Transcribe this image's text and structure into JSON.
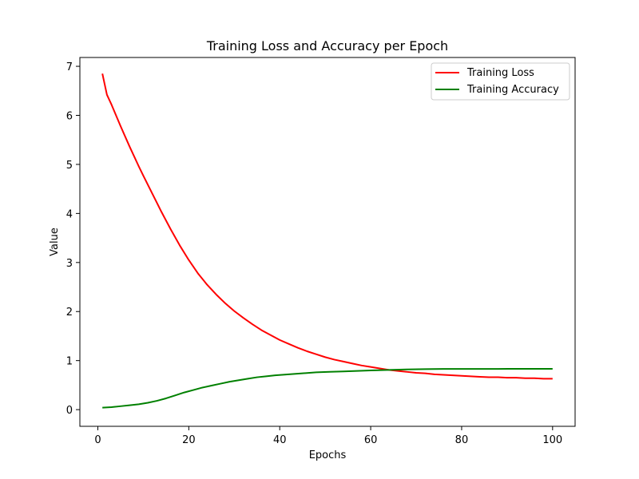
{
  "chart_data": {
    "type": "line",
    "title": "Training Loss and Accuracy per Epoch",
    "xlabel": "Epochs",
    "ylabel": "Value",
    "xlim": [
      -3.95,
      104.95
    ],
    "ylim": [
      -0.34,
      7.18
    ],
    "xticks": [
      0,
      20,
      40,
      60,
      80,
      100
    ],
    "yticks": [
      0,
      1,
      2,
      3,
      4,
      5,
      6,
      7
    ],
    "grid": false,
    "legend_position": "top-right",
    "series": [
      {
        "name": "Training Loss",
        "color": "#ff0000",
        "points": [
          [
            1,
            6.85
          ],
          [
            2,
            6.42
          ],
          [
            3,
            6.22
          ],
          [
            4,
            6.0
          ],
          [
            5,
            5.78
          ],
          [
            6,
            5.57
          ],
          [
            7,
            5.36
          ],
          [
            8,
            5.16
          ],
          [
            9,
            4.96
          ],
          [
            10,
            4.77
          ],
          [
            12,
            4.4
          ],
          [
            14,
            4.03
          ],
          [
            16,
            3.68
          ],
          [
            18,
            3.35
          ],
          [
            20,
            3.05
          ],
          [
            22,
            2.78
          ],
          [
            24,
            2.55
          ],
          [
            26,
            2.35
          ],
          [
            28,
            2.17
          ],
          [
            30,
            2.01
          ],
          [
            32,
            1.87
          ],
          [
            34,
            1.74
          ],
          [
            36,
            1.62
          ],
          [
            38,
            1.52
          ],
          [
            40,
            1.42
          ],
          [
            42,
            1.34
          ],
          [
            44,
            1.26
          ],
          [
            46,
            1.19
          ],
          [
            48,
            1.13
          ],
          [
            50,
            1.07
          ],
          [
            52,
            1.02
          ],
          [
            54,
            0.98
          ],
          [
            56,
            0.94
          ],
          [
            58,
            0.9
          ],
          [
            60,
            0.87
          ],
          [
            62,
            0.84
          ],
          [
            64,
            0.81
          ],
          [
            66,
            0.79
          ],
          [
            68,
            0.77
          ],
          [
            70,
            0.75
          ],
          [
            72,
            0.74
          ],
          [
            74,
            0.72
          ],
          [
            76,
            0.71
          ],
          [
            78,
            0.7
          ],
          [
            80,
            0.69
          ],
          [
            82,
            0.68
          ],
          [
            84,
            0.67
          ],
          [
            86,
            0.66
          ],
          [
            88,
            0.66
          ],
          [
            90,
            0.65
          ],
          [
            92,
            0.65
          ],
          [
            94,
            0.64
          ],
          [
            96,
            0.64
          ],
          [
            98,
            0.63
          ],
          [
            100,
            0.63
          ]
        ]
      },
      {
        "name": "Training Accuracy",
        "color": "#008000",
        "points": [
          [
            1,
            0.04
          ],
          [
            3,
            0.05
          ],
          [
            5,
            0.07
          ],
          [
            7,
            0.09
          ],
          [
            9,
            0.11
          ],
          [
            11,
            0.14
          ],
          [
            13,
            0.18
          ],
          [
            15,
            0.23
          ],
          [
            17,
            0.29
          ],
          [
            19,
            0.35
          ],
          [
            21,
            0.4
          ],
          [
            23,
            0.45
          ],
          [
            25,
            0.49
          ],
          [
            27,
            0.53
          ],
          [
            29,
            0.57
          ],
          [
            31,
            0.6
          ],
          [
            33,
            0.63
          ],
          [
            35,
            0.66
          ],
          [
            37,
            0.68
          ],
          [
            39,
            0.7
          ],
          [
            42,
            0.72
          ],
          [
            45,
            0.74
          ],
          [
            48,
            0.76
          ],
          [
            51,
            0.77
          ],
          [
            54,
            0.78
          ],
          [
            57,
            0.79
          ],
          [
            60,
            0.8
          ],
          [
            64,
            0.81
          ],
          [
            68,
            0.82
          ],
          [
            72,
            0.825
          ],
          [
            76,
            0.83
          ],
          [
            80,
            0.83
          ],
          [
            84,
            0.83
          ],
          [
            88,
            0.83
          ],
          [
            92,
            0.832
          ],
          [
            96,
            0.833
          ],
          [
            100,
            0.833
          ]
        ]
      }
    ]
  }
}
